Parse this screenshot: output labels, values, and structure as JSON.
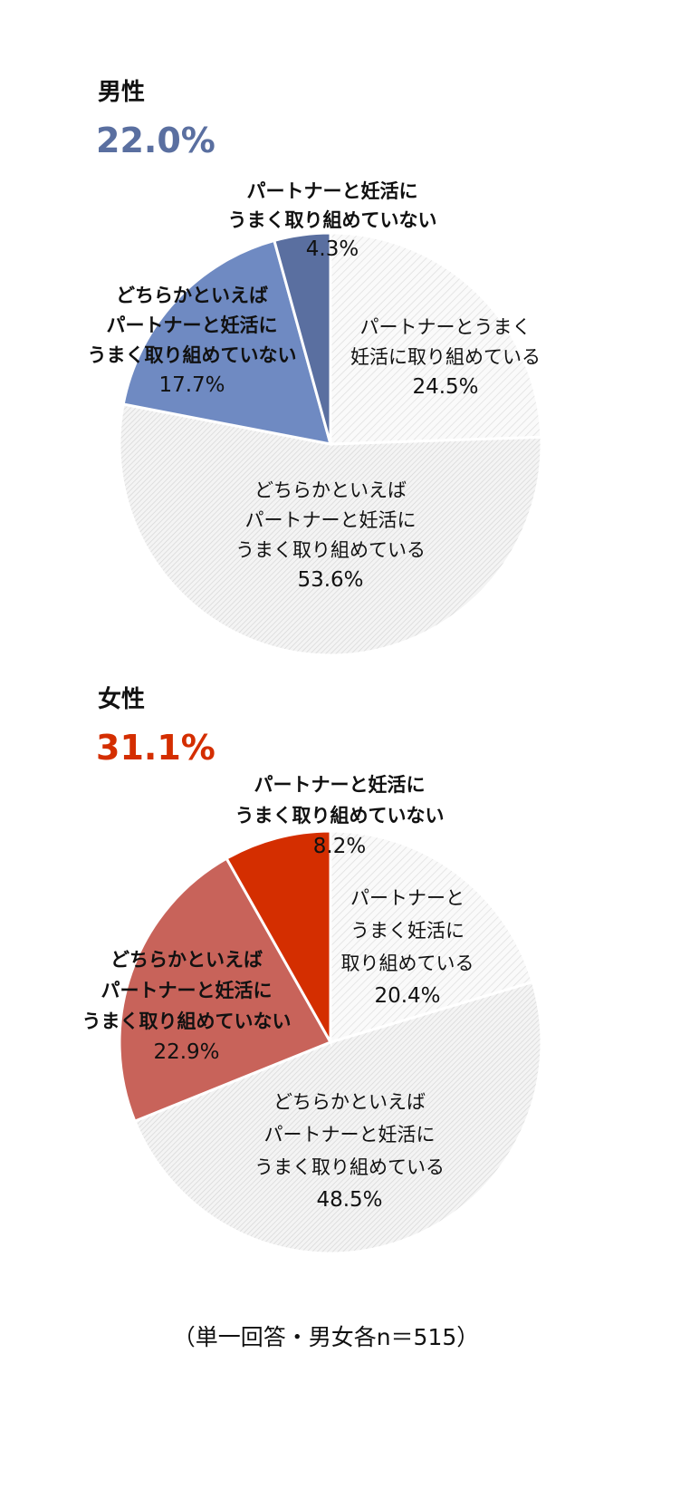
{
  "footnote": "（単一回答・男女各n＝515）",
  "chart_data": [
    {
      "type": "pie",
      "title": "男性",
      "highlight_value": "22.0%",
      "highlight_color": "#5a6fa0",
      "start": "top, clockwise",
      "slices": [
        {
          "label": [
            "パートナーとうまく",
            "妊活に取り組めている"
          ],
          "value": 24.5,
          "value_label": "24.5%",
          "fill": "hatch-light",
          "bold": false
        },
        {
          "label": [
            "どちらかといえば",
            "パートナーと妊活に",
            "うまく取り組めている"
          ],
          "value": 53.6,
          "value_label": "53.6%",
          "fill": "hatch-dense",
          "bold": false
        },
        {
          "label": [
            "どちらかといえば",
            "パートナーと妊活に",
            "うまく取り組めていない"
          ],
          "value": 17.7,
          "value_label": "17.7%",
          "fill": "#6f8ac2",
          "bold": true
        },
        {
          "label": [
            "パートナーと妊活に",
            "うまく取り組めていない"
          ],
          "value": 4.3,
          "value_label": "4.3%",
          "fill": "#5a6fa0",
          "bold": true
        }
      ]
    },
    {
      "type": "pie",
      "title": "女性",
      "highlight_value": "31.1%",
      "highlight_color": "#d42e00",
      "start": "top, clockwise",
      "slices": [
        {
          "label": [
            "パートナーと",
            "うまく妊活に",
            "取り組めている"
          ],
          "value": 20.4,
          "value_label": "20.4%",
          "fill": "hatch-light",
          "bold": false
        },
        {
          "label": [
            "どちらかといえば",
            "パートナーと妊活に",
            "うまく取り組めている"
          ],
          "value": 48.5,
          "value_label": "48.5%",
          "fill": "hatch-dense",
          "bold": false
        },
        {
          "label": [
            "どちらかといえば",
            "パートナーと妊活に",
            "うまく取り組めていない"
          ],
          "value": 22.9,
          "value_label": "22.9%",
          "fill": "#c8635a",
          "bold": true
        },
        {
          "label": [
            "パートナーと妊活に",
            "うまく取り組めていない"
          ],
          "value": 8.2,
          "value_label": "8.2%",
          "fill": "#d42e00",
          "bold": true
        }
      ]
    }
  ]
}
